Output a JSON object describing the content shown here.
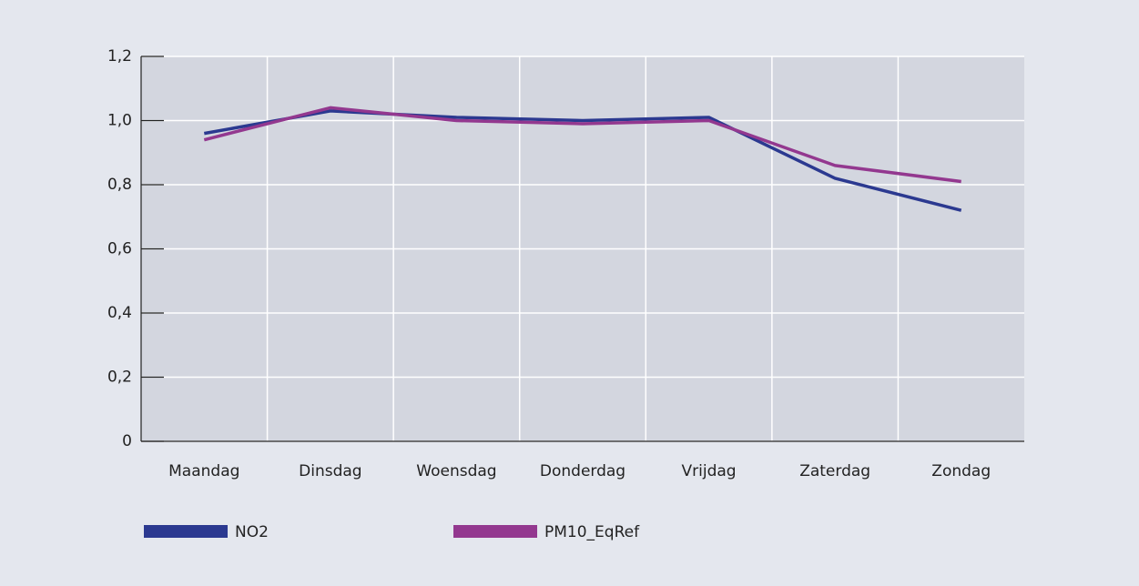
{
  "chart_data": {
    "type": "line",
    "categories": [
      "Maandag",
      "Dinsdag",
      "Woensdag",
      "Donderdag",
      "Vrijdag",
      "Zaterdag",
      "Zondag"
    ],
    "series": [
      {
        "name": "NO2",
        "color": "#2b3990",
        "values": [
          0.96,
          1.03,
          1.01,
          1.0,
          1.01,
          0.82,
          0.72
        ]
      },
      {
        "name": "PM10_EqRef",
        "color": "#93388f",
        "values": [
          0.94,
          1.04,
          1.0,
          0.99,
          1.0,
          0.86,
          0.81
        ]
      }
    ],
    "ylim": [
      0,
      1.2
    ],
    "yticks": [
      0,
      {
        "value": 0.2,
        "label": "0,2"
      },
      {
        "value": 0.4,
        "label": "0,4"
      },
      {
        "value": 0.6,
        "label": "0,6"
      },
      {
        "value": 0.8,
        "label": "0,8"
      },
      {
        "value": 1.0,
        "label": "1,0"
      },
      {
        "value": 1.2,
        "label": "1,2"
      }
    ],
    "grid": true
  }
}
